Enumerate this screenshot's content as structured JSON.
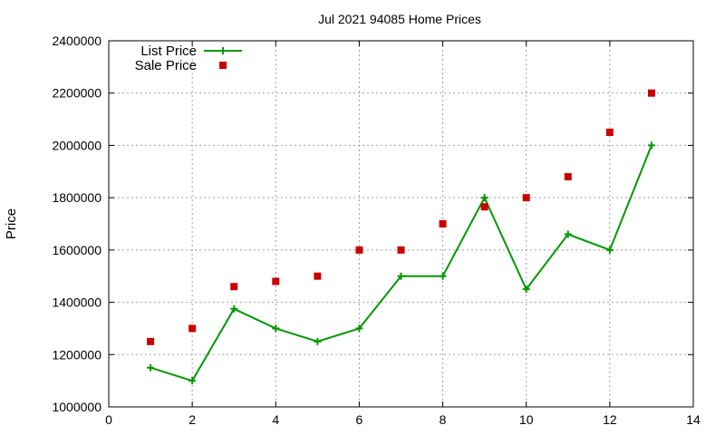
{
  "chart_data": {
    "type": "line",
    "title": "Jul 2021 94085 Home Prices",
    "xlabel": "",
    "ylabel": "Price",
    "xlim": [
      0,
      14
    ],
    "ylim": [
      1000000,
      2400000
    ],
    "x_ticks": [
      0,
      2,
      4,
      6,
      8,
      10,
      12,
      14
    ],
    "y_ticks": [
      1000000,
      1200000,
      1400000,
      1600000,
      1800000,
      2000000,
      2200000,
      2400000
    ],
    "x_tick_labels": [
      "0",
      "2",
      "4",
      "6",
      "8",
      "10",
      "12",
      "14"
    ],
    "y_tick_labels": [
      "1000000",
      "1200000",
      "1400000",
      "1600000",
      "1800000",
      "2000000",
      "2200000",
      "2400000"
    ],
    "grid": true,
    "legend_position": "top-left",
    "series": [
      {
        "name": "List Price",
        "style": "linespoints",
        "marker": "plus",
        "color": "#009900",
        "x": [
          1,
          2,
          3,
          4,
          5,
          6,
          7,
          8,
          9,
          10,
          11,
          12,
          13
        ],
        "y": [
          1150000,
          1100000,
          1375000,
          1300000,
          1250000,
          1300000,
          1500000,
          1500000,
          1800000,
          1450000,
          1660000,
          1600000,
          2000000
        ]
      },
      {
        "name": "Sale Price",
        "style": "points",
        "marker": "square",
        "color": "#cc0000",
        "x": [
          1,
          2,
          3,
          4,
          5,
          6,
          7,
          8,
          9,
          10,
          11,
          12,
          13
        ],
        "y": [
          1250000,
          1300000,
          1460000,
          1480000,
          1500000,
          1600000,
          1600000,
          1700000,
          1765000,
          1800000,
          1880000,
          2050000,
          2200000
        ]
      }
    ]
  }
}
